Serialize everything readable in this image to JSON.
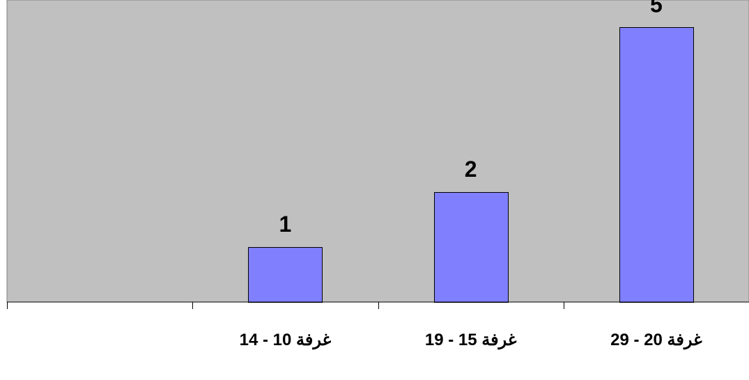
{
  "chart_data": {
    "type": "bar",
    "categories": [
      "",
      "غرفة 10 - 14",
      "غرفة 15 - 19",
      "غرفة 20 - 29"
    ],
    "values": [
      null,
      1,
      2,
      5
    ],
    "data_labels": [
      "",
      "1",
      "2",
      "5"
    ],
    "title": "",
    "xlabel": "",
    "ylabel": "",
    "ylim": [
      0,
      5.5
    ],
    "grid": false,
    "legend": "none",
    "colors": {
      "bar": "#8080ff",
      "plot_background": "#c0c0c0",
      "page_background": "#ffffff"
    }
  }
}
